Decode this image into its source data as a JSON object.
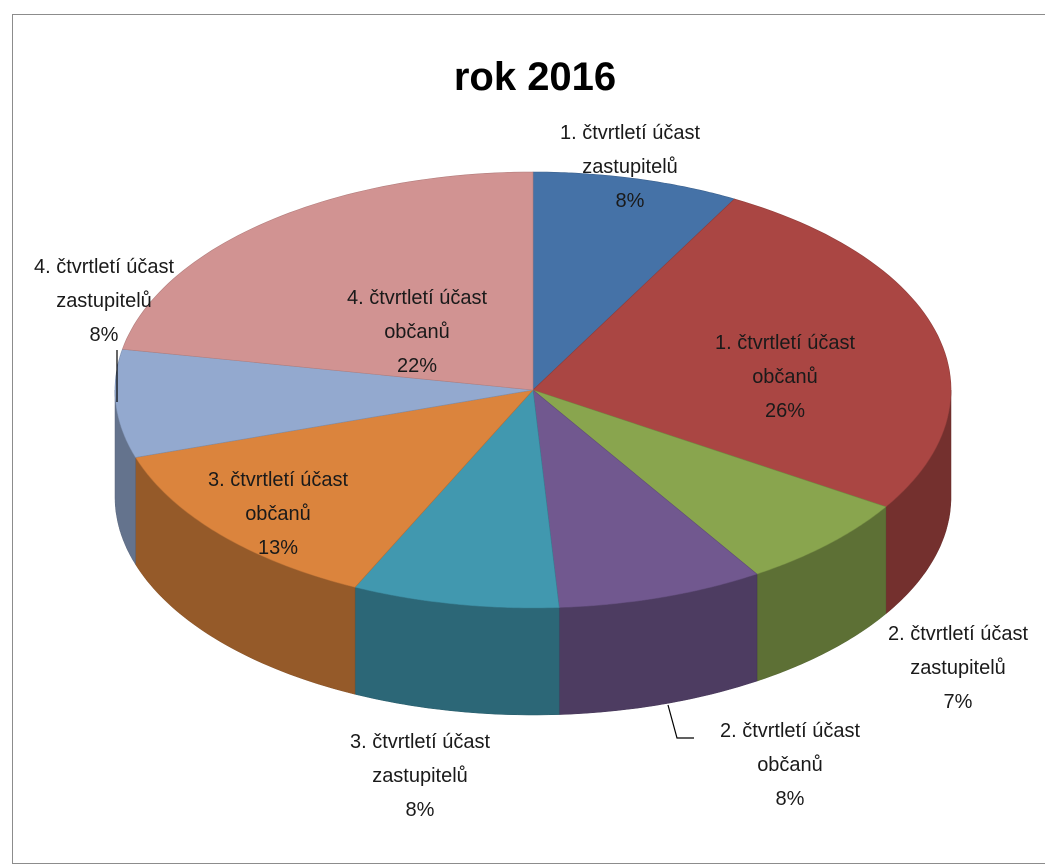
{
  "chart_data": {
    "type": "pie",
    "title": "rok 2016",
    "slices": [
      {
        "name": "1. čtvrtletí účast zastupitelů",
        "value": 8,
        "label": "8%",
        "color": "#4572A7",
        "label_lines": [
          "1. čtvrtletí účast",
          "zastupitelů",
          "8%"
        ]
      },
      {
        "name": "1. čtvrtletí účast občanů",
        "value": 26,
        "label": "26%",
        "color": "#AA4643",
        "label_lines": [
          "1. čtvrtletí účast",
          "občanů",
          "26%"
        ]
      },
      {
        "name": "2. čtvrtletí účast zastupitelů",
        "value": 7,
        "label": "7%",
        "color": "#89A54E",
        "label_lines": [
          "2. čtvrtletí účast",
          "zastupitelů",
          "7%"
        ]
      },
      {
        "name": "2. čtvrtletí účast občanů",
        "value": 8,
        "label": "8%",
        "color": "#71588F",
        "label_lines": [
          "2. čtvrtletí účast",
          "občanů",
          "8%"
        ]
      },
      {
        "name": "3. čtvrtletí účast zastupitelů",
        "value": 8,
        "label": "8%",
        "color": "#4198AF",
        "label_lines": [
          "3. čtvrtletí účast",
          "zastupitelů",
          "8%"
        ]
      },
      {
        "name": "3. čtvrtletí účast občanů",
        "value": 13,
        "label": "13%",
        "color": "#DB843D",
        "label_lines": [
          "3. čtvrtletí účast",
          "občanů",
          "13%"
        ]
      },
      {
        "name": "4. čtvrtletí účast zastupitelů",
        "value": 8,
        "label": "8%",
        "color": "#93A9CF",
        "label_lines": [
          "4. čtvrtletí účast",
          "zastupitelů",
          "8%"
        ]
      },
      {
        "name": "4. čtvrtletí účast občanů",
        "value": 22,
        "label": "22%",
        "color": "#D19392",
        "label_lines": [
          "4. čtvrtletí účast",
          "občanů",
          "22%"
        ]
      }
    ],
    "style": "3d-pie",
    "legend": "none"
  }
}
